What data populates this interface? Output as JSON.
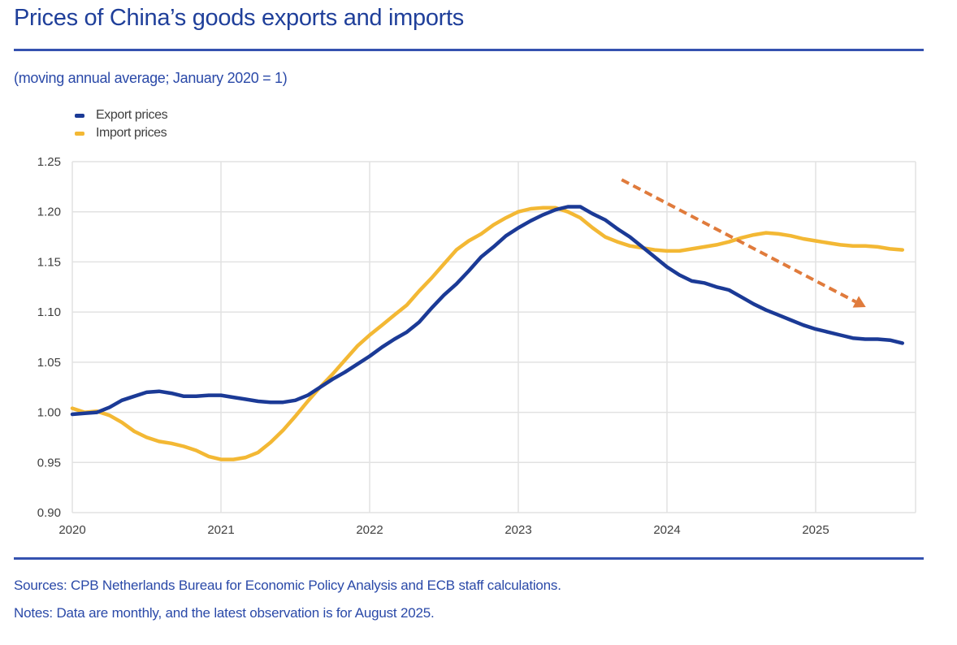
{
  "header": {
    "title": "Prices of China’s goods exports and imports",
    "subtitle": "(moving annual average; January 2020 = 1)"
  },
  "footer": {
    "sources": "Sources: CPB Netherlands Bureau for Economic Policy Analysis and ECB staff calculations.",
    "notes": "Notes: Data are monthly, and the latest observation is for August 2025."
  },
  "colors": {
    "export": "#1b3a96",
    "import": "#f3b834",
    "arrow": "#e07b3c",
    "grid": "#e2e2e2",
    "rule": "#3552b0"
  },
  "chart_data": {
    "type": "line",
    "title": "Prices of China’s goods exports and imports",
    "subtitle": "(moving annual average; January 2020 = 1)",
    "xlabel": "",
    "ylabel": "",
    "x_start": "2020-01",
    "x_frequency": "monthly",
    "x_ticks": [
      "2020",
      "2021",
      "2022",
      "2023",
      "2024",
      "2025"
    ],
    "y_ticks": [
      "0.90",
      "0.95",
      "1.00",
      "1.05",
      "1.10",
      "1.15",
      "1.20",
      "1.25"
    ],
    "ylim": [
      0.9,
      1.25
    ],
    "xlim": [
      "2020-01",
      "2025-08"
    ],
    "grid": true,
    "legend_position": "top-left",
    "annotations": [
      {
        "type": "dashed-arrow",
        "direction": "downward trend",
        "from": [
          "2023-10",
          1.232
        ],
        "to": [
          "2025-08",
          1.105
        ]
      }
    ],
    "series": [
      {
        "name": "Export prices",
        "values": [
          0.998,
          0.999,
          1.0,
          1.005,
          1.012,
          1.016,
          1.02,
          1.021,
          1.019,
          1.016,
          1.016,
          1.017,
          1.017,
          1.015,
          1.013,
          1.011,
          1.01,
          1.01,
          1.012,
          1.017,
          1.025,
          1.033,
          1.04,
          1.048,
          1.056,
          1.065,
          1.073,
          1.08,
          1.09,
          1.104,
          1.117,
          1.128,
          1.141,
          1.155,
          1.165,
          1.176,
          1.184,
          1.191,
          1.197,
          1.202,
          1.205,
          1.205,
          1.198,
          1.192,
          1.183,
          1.175,
          1.165,
          1.155,
          1.145,
          1.137,
          1.131,
          1.129,
          1.125,
          1.122,
          1.115,
          1.108,
          1.102,
          1.097,
          1.092,
          1.087,
          1.083,
          1.08,
          1.077,
          1.074,
          1.073,
          1.073,
          1.072,
          1.069
        ]
      },
      {
        "name": "Import prices",
        "values": [
          1.004,
          1.0,
          1.001,
          0.997,
          0.99,
          0.981,
          0.975,
          0.971,
          0.969,
          0.966,
          0.962,
          0.956,
          0.953,
          0.953,
          0.955,
          0.96,
          0.97,
          0.982,
          0.996,
          1.011,
          1.025,
          1.038,
          1.052,
          1.066,
          1.077,
          1.087,
          1.097,
          1.107,
          1.121,
          1.134,
          1.148,
          1.162,
          1.171,
          1.178,
          1.187,
          1.194,
          1.2,
          1.203,
          1.204,
          1.204,
          1.2,
          1.194,
          1.184,
          1.175,
          1.17,
          1.166,
          1.164,
          1.162,
          1.161,
          1.161,
          1.163,
          1.165,
          1.167,
          1.17,
          1.174,
          1.177,
          1.179,
          1.178,
          1.176,
          1.173,
          1.171,
          1.169,
          1.167,
          1.166,
          1.166,
          1.165,
          1.163,
          1.162
        ]
      }
    ]
  }
}
